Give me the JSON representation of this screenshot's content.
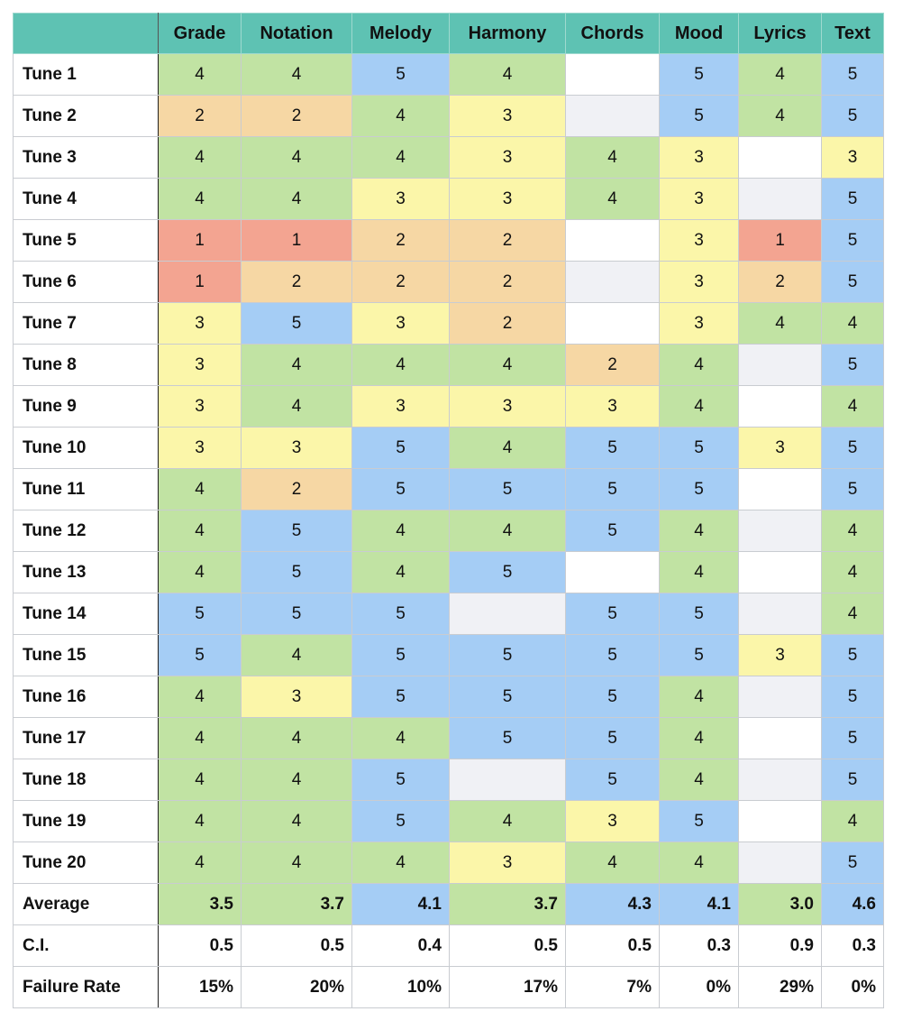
{
  "colors": {
    "1": "#f3a491",
    "2": "#f6d7a4",
    "3": "#fbf6a9",
    "4": "#c1e3a3",
    "5": "#a5cdf5",
    "blank": "#ffffff",
    "na": "#f0f1f5",
    "header": "#5ec2b3"
  },
  "columns": [
    "Grade",
    "Notation",
    "Melody",
    "Harmony",
    "Chords",
    "Mood",
    "Lyrics",
    "Text"
  ],
  "rows": [
    {
      "label": "Tune 1",
      "cells": [
        "4",
        "4",
        "5",
        "4",
        "",
        "5",
        "4",
        "5"
      ],
      "fills": [
        "4",
        "4",
        "5",
        "4",
        "blank",
        "5",
        "4",
        "5"
      ]
    },
    {
      "label": "Tune 2",
      "cells": [
        "2",
        "2",
        "4",
        "3",
        "",
        "5",
        "4",
        "5"
      ],
      "fills": [
        "2",
        "2",
        "4",
        "3",
        "na",
        "5",
        "4",
        "5"
      ]
    },
    {
      "label": "Tune 3",
      "cells": [
        "4",
        "4",
        "4",
        "3",
        "4",
        "3",
        "",
        "3"
      ],
      "fills": [
        "4",
        "4",
        "4",
        "3",
        "4",
        "3",
        "blank",
        "3"
      ]
    },
    {
      "label": "Tune 4",
      "cells": [
        "4",
        "4",
        "3",
        "3",
        "4",
        "3",
        "",
        "5"
      ],
      "fills": [
        "4",
        "4",
        "3",
        "3",
        "4",
        "3",
        "na",
        "5"
      ]
    },
    {
      "label": "Tune 5",
      "cells": [
        "1",
        "1",
        "2",
        "2",
        "",
        "3",
        "1",
        "5"
      ],
      "fills": [
        "1",
        "1",
        "2",
        "2",
        "blank",
        "3",
        "1",
        "5"
      ]
    },
    {
      "label": "Tune 6",
      "cells": [
        "1",
        "2",
        "2",
        "2",
        "",
        "3",
        "2",
        "5"
      ],
      "fills": [
        "1",
        "2",
        "2",
        "2",
        "na",
        "3",
        "2",
        "5"
      ]
    },
    {
      "label": "Tune 7",
      "cells": [
        "3",
        "5",
        "3",
        "2",
        "",
        "3",
        "4",
        "4"
      ],
      "fills": [
        "3",
        "5",
        "3",
        "2",
        "blank",
        "3",
        "4",
        "4"
      ]
    },
    {
      "label": "Tune 8",
      "cells": [
        "3",
        "4",
        "4",
        "4",
        "2",
        "4",
        "",
        "5"
      ],
      "fills": [
        "3",
        "4",
        "4",
        "4",
        "2",
        "4",
        "na",
        "5"
      ]
    },
    {
      "label": "Tune 9",
      "cells": [
        "3",
        "4",
        "3",
        "3",
        "3",
        "4",
        "",
        "4"
      ],
      "fills": [
        "3",
        "4",
        "3",
        "3",
        "3",
        "4",
        "blank",
        "4"
      ]
    },
    {
      "label": "Tune 10",
      "cells": [
        "3",
        "3",
        "5",
        "4",
        "5",
        "5",
        "3",
        "5"
      ],
      "fills": [
        "3",
        "3",
        "5",
        "4",
        "5",
        "5",
        "3",
        "5"
      ]
    },
    {
      "label": "Tune 11",
      "cells": [
        "4",
        "2",
        "5",
        "5",
        "5",
        "5",
        "",
        "5"
      ],
      "fills": [
        "4",
        "2",
        "5",
        "5",
        "5",
        "5",
        "blank",
        "5"
      ]
    },
    {
      "label": "Tune 12",
      "cells": [
        "4",
        "5",
        "4",
        "4",
        "5",
        "4",
        "",
        "4"
      ],
      "fills": [
        "4",
        "5",
        "4",
        "4",
        "5",
        "4",
        "na",
        "4"
      ]
    },
    {
      "label": "Tune 13",
      "cells": [
        "4",
        "5",
        "4",
        "5",
        "",
        "4",
        "",
        "4"
      ],
      "fills": [
        "4",
        "5",
        "4",
        "5",
        "blank",
        "4",
        "blank",
        "4"
      ]
    },
    {
      "label": "Tune 14",
      "cells": [
        "5",
        "5",
        "5",
        "",
        "5",
        "5",
        "",
        "4"
      ],
      "fills": [
        "5",
        "5",
        "5",
        "na",
        "5",
        "5",
        "na",
        "4"
      ]
    },
    {
      "label": "Tune 15",
      "cells": [
        "5",
        "4",
        "5",
        "5",
        "5",
        "5",
        "3",
        "5"
      ],
      "fills": [
        "5",
        "4",
        "5",
        "5",
        "5",
        "5",
        "3",
        "5"
      ]
    },
    {
      "label": "Tune 16",
      "cells": [
        "4",
        "3",
        "5",
        "5",
        "5",
        "4",
        "",
        "5"
      ],
      "fills": [
        "4",
        "3",
        "5",
        "5",
        "5",
        "4",
        "na",
        "5"
      ]
    },
    {
      "label": "Tune 17",
      "cells": [
        "4",
        "4",
        "4",
        "5",
        "5",
        "4",
        "",
        "5"
      ],
      "fills": [
        "4",
        "4",
        "4",
        "5",
        "5",
        "4",
        "blank",
        "5"
      ]
    },
    {
      "label": "Tune 18",
      "cells": [
        "4",
        "4",
        "5",
        "",
        "5",
        "4",
        "",
        "5"
      ],
      "fills": [
        "4",
        "4",
        "5",
        "na",
        "5",
        "4",
        "na",
        "5"
      ]
    },
    {
      "label": "Tune 19",
      "cells": [
        "4",
        "4",
        "5",
        "4",
        "3",
        "5",
        "",
        "4"
      ],
      "fills": [
        "4",
        "4",
        "5",
        "4",
        "3",
        "5",
        "blank",
        "4"
      ]
    },
    {
      "label": "Tune 20",
      "cells": [
        "4",
        "4",
        "4",
        "3",
        "4",
        "4",
        "",
        "5"
      ],
      "fills": [
        "4",
        "4",
        "4",
        "3",
        "4",
        "4",
        "na",
        "5"
      ]
    }
  ],
  "summary": [
    {
      "label": "Average",
      "cells": [
        "3.5",
        "3.7",
        "4.1",
        "3.7",
        "4.3",
        "4.1",
        "3.0",
        "4.6"
      ],
      "fills": [
        "4",
        "4",
        "5",
        "4",
        "5",
        "5",
        "4",
        "5"
      ]
    },
    {
      "label": "C.I.",
      "cells": [
        "0.5",
        "0.5",
        "0.4",
        "0.5",
        "0.5",
        "0.3",
        "0.9",
        "0.3"
      ],
      "fills": [
        "blank",
        "blank",
        "blank",
        "blank",
        "blank",
        "blank",
        "blank",
        "blank"
      ]
    },
    {
      "label": "Failure Rate",
      "cells": [
        "15%",
        "20%",
        "10%",
        "17%",
        "7%",
        "0%",
        "29%",
        "0%"
      ],
      "fills": [
        "blank",
        "blank",
        "blank",
        "blank",
        "blank",
        "blank",
        "blank",
        "blank"
      ]
    }
  ]
}
